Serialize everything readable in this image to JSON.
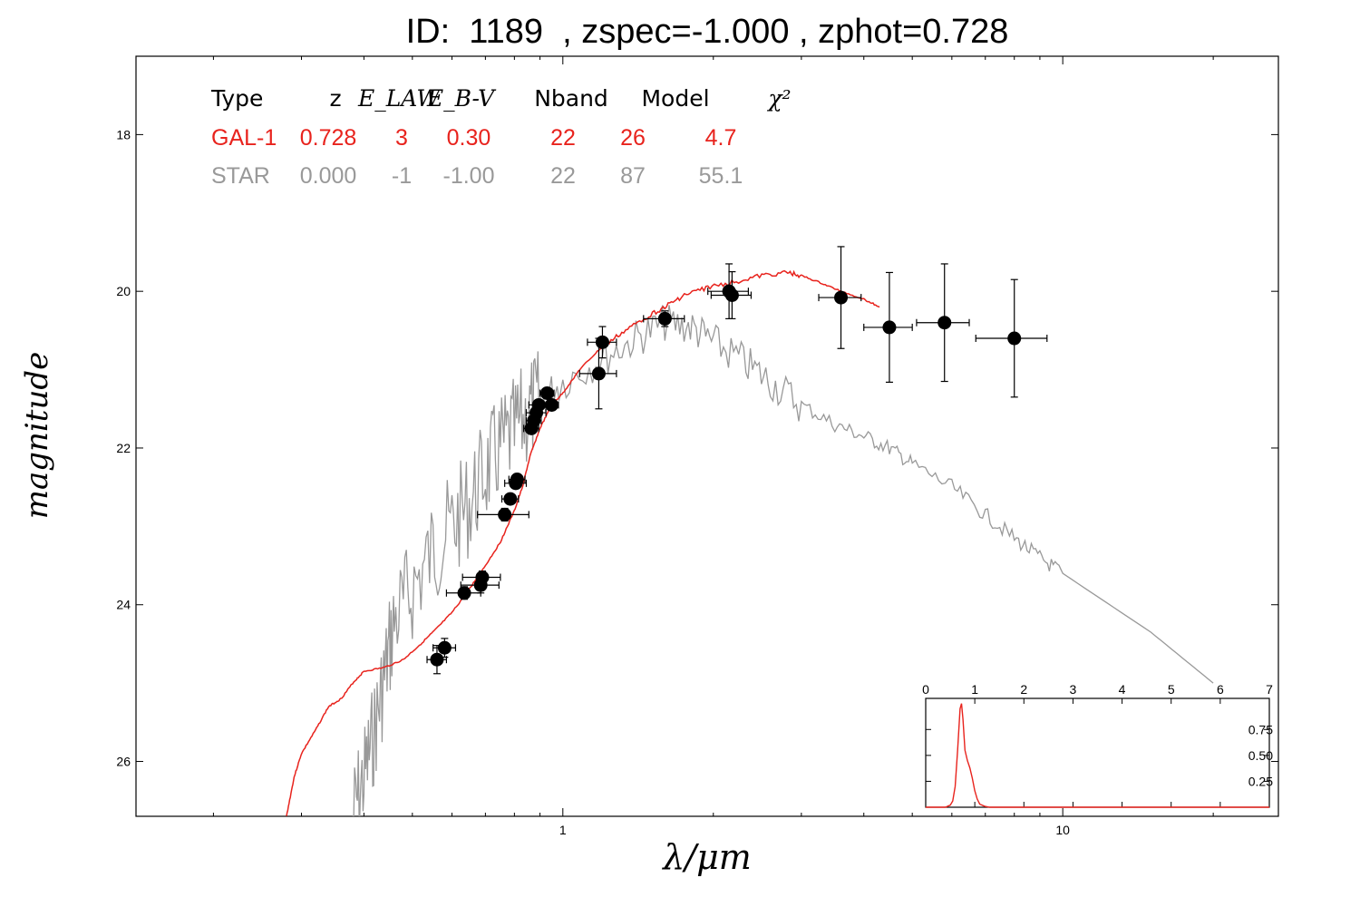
{
  "title": "ID:  1189  , zspec=-1.000 , zphot=0.728",
  "chart_data": {
    "type": "scatter",
    "xlabel": "λ/μm",
    "ylabel": "magnitude",
    "x_scale": "log",
    "xlim": [
      0.14,
      27
    ],
    "ylim": [
      26.7,
      17.0
    ],
    "y_inverted": true,
    "x_ticks": [
      {
        "value": 1,
        "label": "1"
      },
      {
        "value": 10,
        "label": "10"
      }
    ],
    "y_ticks": [
      {
        "value": 18,
        "label": "18"
      },
      {
        "value": 20,
        "label": "20"
      },
      {
        "value": 22,
        "label": "22"
      },
      {
        "value": 24,
        "label": "24"
      },
      {
        "value": 26,
        "label": "26"
      }
    ],
    "fit_table": {
      "headers": [
        "Type",
        "z",
        "E_LAW",
        "E_B-V",
        "Nband",
        "Model",
        "χ²"
      ],
      "rows": [
        {
          "color": "#e8231d",
          "cells": [
            "GAL-1",
            "0.728",
            "3",
            "0.30",
            "22",
            "26",
            "4.7"
          ]
        },
        {
          "color": "#999999",
          "cells": [
            "STAR",
            "0.000",
            "-1",
            "-1.00",
            "22",
            "87",
            "55.1"
          ]
        }
      ]
    },
    "galaxy_curve": {
      "color": "#e8231d",
      "points": [
        [
          0.28,
          26.7
        ],
        [
          0.29,
          26.2
        ],
        [
          0.3,
          25.9
        ],
        [
          0.32,
          25.6
        ],
        [
          0.34,
          25.3
        ],
        [
          0.36,
          25.2
        ],
        [
          0.38,
          25.0
        ],
        [
          0.4,
          24.85
        ],
        [
          0.44,
          24.8
        ],
        [
          0.48,
          24.7
        ],
        [
          0.52,
          24.5
        ],
        [
          0.56,
          24.3
        ],
        [
          0.6,
          24.1
        ],
        [
          0.65,
          23.8
        ],
        [
          0.7,
          23.5
        ],
        [
          0.75,
          23.2
        ],
        [
          0.8,
          22.8
        ],
        [
          0.83,
          22.5
        ],
        [
          0.86,
          22.1
        ],
        [
          0.9,
          21.75
        ],
        [
          0.95,
          21.45
        ],
        [
          1.0,
          21.3
        ],
        [
          1.08,
          21.0
        ],
        [
          1.18,
          20.75
        ],
        [
          1.3,
          20.55
        ],
        [
          1.45,
          20.35
        ],
        [
          1.6,
          20.2
        ],
        [
          1.75,
          20.05
        ],
        [
          1.95,
          19.95
        ],
        [
          2.2,
          19.88
        ],
        [
          2.5,
          19.8
        ],
        [
          2.8,
          19.76
        ],
        [
          3.0,
          19.8
        ],
        [
          3.3,
          19.9
        ],
        [
          3.6,
          20.0
        ],
        [
          4.0,
          20.1
        ],
        [
          4.3,
          20.2
        ]
      ]
    },
    "star_curve": {
      "color": "#999999",
      "points": [
        [
          0.38,
          26.7
        ],
        [
          0.4,
          26.2
        ],
        [
          0.42,
          25.6
        ],
        [
          0.44,
          24.9
        ],
        [
          0.46,
          24.2
        ],
        [
          0.5,
          23.8
        ],
        [
          0.55,
          23.3
        ],
        [
          0.6,
          23.0
        ],
        [
          0.65,
          22.7
        ],
        [
          0.7,
          22.3
        ],
        [
          0.75,
          22.0
        ],
        [
          0.8,
          21.8
        ],
        [
          0.85,
          21.55
        ],
        [
          0.9,
          21.4
        ],
        [
          1.0,
          21.15
        ],
        [
          1.2,
          20.85
        ],
        [
          1.4,
          20.6
        ],
        [
          1.6,
          20.4
        ],
        [
          1.8,
          20.45
        ],
        [
          2.0,
          20.65
        ],
        [
          2.3,
          20.9
        ],
        [
          2.6,
          21.15
        ],
        [
          3.0,
          21.45
        ],
        [
          3.5,
          21.7
        ],
        [
          4.0,
          21.85
        ],
        [
          4.5,
          22.0
        ],
        [
          5.0,
          22.2
        ],
        [
          6.0,
          22.5
        ],
        [
          7.0,
          22.85
        ],
        [
          8.0,
          23.15
        ],
        [
          9.0,
          23.4
        ],
        [
          10.0,
          23.6
        ],
        [
          15.0,
          24.35
        ],
        [
          20.0,
          25.0
        ]
      ]
    },
    "observations": [
      {
        "x": 0.58,
        "y": 24.55,
        "xerr": 0.03,
        "yerr": 0.12
      },
      {
        "x": 0.56,
        "y": 24.7,
        "xerr": 0.025,
        "yerr": 0.18
      },
      {
        "x": 0.635,
        "y": 23.85,
        "xerr": 0.05,
        "yerr": 0.08
      },
      {
        "x": 0.685,
        "y": 23.75,
        "xerr": 0.06,
        "yerr": 0.1
      },
      {
        "x": 0.69,
        "y": 23.65,
        "xerr": 0.06,
        "yerr": 0.08
      },
      {
        "x": 0.765,
        "y": 22.85,
        "xerr": 0.09,
        "yerr": 0.08
      },
      {
        "x": 0.785,
        "y": 22.65,
        "xerr": 0.03,
        "yerr": 0.06
      },
      {
        "x": 0.805,
        "y": 22.45,
        "xerr": 0.04,
        "yerr": 0.06
      },
      {
        "x": 0.81,
        "y": 22.4,
        "xerr": 0.03,
        "yerr": 0.06
      },
      {
        "x": 0.865,
        "y": 21.75,
        "xerr": 0.03,
        "yerr": 0.06
      },
      {
        "x": 0.875,
        "y": 21.65,
        "xerr": 0.03,
        "yerr": 0.06
      },
      {
        "x": 0.885,
        "y": 21.55,
        "xerr": 0.04,
        "yerr": 0.06
      },
      {
        "x": 0.895,
        "y": 21.45,
        "xerr": 0.04,
        "yerr": 0.06
      },
      {
        "x": 0.93,
        "y": 21.3,
        "xerr": 0.03,
        "yerr": 0.06
      },
      {
        "x": 0.95,
        "y": 21.45,
        "xerr": 0.03,
        "yerr": 0.06
      },
      {
        "x": 1.2,
        "y": 20.65,
        "xerr": 0.08,
        "yerr": 0.2
      },
      {
        "x": 1.18,
        "y": 21.05,
        "xerr": 0.1,
        "yerr": 0.45
      },
      {
        "x": 1.6,
        "y": 20.35,
        "xerr": 0.15,
        "yerr": 0.1
      },
      {
        "x": 2.15,
        "y": 20.0,
        "xerr": 0.2,
        "yerr": 0.35
      },
      {
        "x": 2.18,
        "y": 20.05,
        "xerr": 0.2,
        "yerr": 0.3
      },
      {
        "x": 3.6,
        "y": 20.08,
        "xerr": 0.35,
        "yerr": 0.65
      },
      {
        "x": 4.5,
        "y": 20.46,
        "xerr": 0.5,
        "yerr": 0.7
      },
      {
        "x": 5.8,
        "y": 20.4,
        "xerr": 0.7,
        "yerr": 0.75
      },
      {
        "x": 8.0,
        "y": 20.6,
        "xerr": 1.3,
        "yerr": 0.75
      }
    ],
    "inset": {
      "xlim": [
        0,
        7
      ],
      "ylim": [
        0,
        1.05
      ],
      "x_ticks": [
        0,
        1,
        2,
        3,
        4,
        5,
        6,
        7
      ],
      "y_ticks": [
        0.25,
        0.5,
        0.75
      ],
      "y_tick_labels": [
        "0.25",
        "0.50",
        "0.75"
      ],
      "color": "#e8231d",
      "pdz": [
        [
          0,
          0.0
        ],
        [
          0.4,
          0.0
        ],
        [
          0.5,
          0.02
        ],
        [
          0.55,
          0.06
        ],
        [
          0.6,
          0.2
        ],
        [
          0.65,
          0.55
        ],
        [
          0.7,
          0.95
        ],
        [
          0.73,
          1.0
        ],
        [
          0.76,
          0.85
        ],
        [
          0.8,
          0.55
        ],
        [
          0.85,
          0.45
        ],
        [
          0.9,
          0.38
        ],
        [
          0.95,
          0.28
        ],
        [
          1.0,
          0.16
        ],
        [
          1.05,
          0.08
        ],
        [
          1.1,
          0.03
        ],
        [
          1.2,
          0.01
        ],
        [
          1.3,
          0.0
        ],
        [
          7.0,
          0.0
        ]
      ]
    }
  }
}
